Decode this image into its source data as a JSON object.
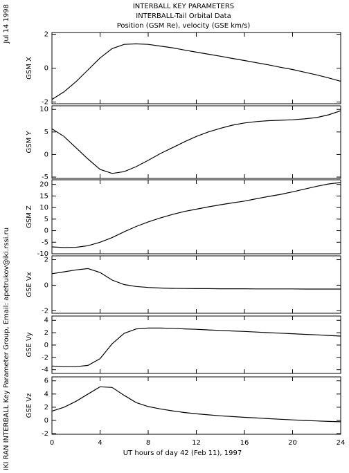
{
  "header": {
    "date": "Jul 14 1998",
    "credit": "IKI RAN INTERBALL Key Parameter Group, Email: apetrukov@iki.rssi.ru",
    "title": "INTERBALL KEY PARAMETERS",
    "subtitle": "INTERBALL-Tail Orbital Data",
    "subtitle2": "Position (GSM Re), velocity (GSE km/s)"
  },
  "chart_data": [
    {
      "type": "line",
      "ylabel": "GSM X",
      "color": "#000000",
      "x": [
        0,
        1,
        2,
        3,
        4,
        5,
        6,
        7,
        8,
        9,
        10,
        11,
        12,
        13,
        14,
        15,
        16,
        17,
        18,
        19,
        20,
        21,
        22,
        23,
        24
      ],
      "values": [
        -1.85,
        -1.4,
        -0.8,
        -0.1,
        0.6,
        1.15,
        1.4,
        1.43,
        1.4,
        1.3,
        1.2,
        1.07,
        0.94,
        0.82,
        0.7,
        0.57,
        0.45,
        0.32,
        0.19,
        0.05,
        -0.08,
        -0.24,
        -0.4,
        -0.58,
        -0.78
      ],
      "xlim": [
        0,
        24
      ],
      "xticks": [
        0,
        4,
        8,
        12,
        16,
        20,
        24
      ],
      "ylim": [
        -2.1,
        2.1
      ],
      "yticks": [
        -2,
        0,
        2
      ]
    },
    {
      "type": "line",
      "ylabel": "GSM Y",
      "color": "#000000",
      "x": [
        0,
        1,
        2,
        3,
        4,
        5,
        6,
        7,
        8,
        9,
        10,
        11,
        12,
        13,
        14,
        15,
        16,
        17,
        18,
        19,
        20,
        21,
        22,
        23,
        24
      ],
      "values": [
        5.7,
        4,
        1.5,
        -1,
        -3.3,
        -4.2,
        -3.8,
        -2.7,
        -1.3,
        0.2,
        1.5,
        2.8,
        4,
        5,
        5.8,
        6.5,
        7,
        7.3,
        7.5,
        7.6,
        7.7,
        7.9,
        8.2,
        8.8,
        9.7
      ],
      "xlim": [
        0,
        24
      ],
      "xticks": [
        0,
        4,
        8,
        12,
        16,
        20,
        24
      ],
      "ylim": [
        -5.3,
        10.8
      ],
      "yticks": [
        -5,
        0,
        5,
        10
      ]
    },
    {
      "type": "line",
      "ylabel": "GSM Z",
      "color": "#000000",
      "x": [
        0,
        1,
        2,
        3,
        4,
        5,
        6,
        7,
        8,
        9,
        10,
        11,
        12,
        13,
        14,
        15,
        16,
        17,
        18,
        19,
        20,
        21,
        22,
        23,
        24
      ],
      "values": [
        -7,
        -7.3,
        -7.2,
        -6.5,
        -5,
        -3,
        -0.5,
        1.8,
        3.8,
        5.5,
        7,
        8.3,
        9.3,
        10.3,
        11.2,
        12,
        12.8,
        13.8,
        14.8,
        15.7,
        16.8,
        18,
        19.2,
        20.2,
        20.8
      ],
      "xlim": [
        0,
        24
      ],
      "xticks": [
        0,
        4,
        8,
        12,
        16,
        20,
        24
      ],
      "ylim": [
        -10,
        22
      ],
      "yticks": [
        -10,
        -5,
        0,
        5,
        10,
        15,
        20
      ]
    },
    {
      "type": "line",
      "ylabel": "GSE Vx",
      "color": "#000000",
      "x": [
        0,
        1,
        2,
        3,
        4,
        5,
        6,
        7,
        8,
        9,
        10,
        11,
        12,
        13,
        14,
        15,
        16,
        17,
        18,
        19,
        20,
        21,
        22,
        23,
        24
      ],
      "values": [
        0.9,
        1.05,
        1.2,
        1.3,
        1.0,
        0.4,
        0.05,
        -0.1,
        -0.18,
        -0.22,
        -0.25,
        -0.26,
        -0.27,
        -0.27,
        -0.28,
        -0.28,
        -0.28,
        -0.29,
        -0.29,
        -0.29,
        -0.29,
        -0.3,
        -0.3,
        -0.3,
        -0.3
      ],
      "xlim": [
        0,
        24
      ],
      "xticks": [
        0,
        4,
        8,
        12,
        16,
        20,
        24
      ],
      "ylim": [
        -2.2,
        2.3
      ],
      "yticks": [
        -2,
        0,
        2
      ]
    },
    {
      "type": "line",
      "ylabel": "GSE Vy",
      "color": "#000000",
      "x": [
        0,
        1,
        2,
        3,
        4,
        5,
        6,
        7,
        8,
        9,
        10,
        11,
        12,
        13,
        14,
        15,
        16,
        17,
        18,
        19,
        20,
        21,
        22,
        23,
        24
      ],
      "values": [
        -3.4,
        -3.5,
        -3.5,
        -3.3,
        -2.2,
        0.2,
        1.9,
        2.6,
        2.75,
        2.75,
        2.7,
        2.62,
        2.55,
        2.45,
        2.37,
        2.28,
        2.2,
        2.1,
        2.0,
        1.92,
        1.83,
        1.73,
        1.65,
        1.55,
        1.45
      ],
      "xlim": [
        0,
        24
      ],
      "xticks": [
        0,
        4,
        8,
        12,
        16,
        20,
        24
      ],
      "ylim": [
        -4.6,
        4.7
      ],
      "yticks": [
        -4,
        -2,
        0,
        2,
        4
      ]
    },
    {
      "type": "line",
      "ylabel": "GSE Vz",
      "xlabel": "UT hours of day  42 (Feb 11), 1997",
      "color": "#000000",
      "x": [
        0,
        1,
        2,
        3,
        4,
        5,
        6,
        7,
        8,
        9,
        10,
        11,
        12,
        13,
        14,
        15,
        16,
        17,
        18,
        19,
        20,
        21,
        22,
        23,
        24
      ],
      "values": [
        1.4,
        2.0,
        2.9,
        4.0,
        5.1,
        5.0,
        3.8,
        2.7,
        2.1,
        1.75,
        1.45,
        1.2,
        1.0,
        0.85,
        0.7,
        0.58,
        0.47,
        0.37,
        0.27,
        0.17,
        0.08,
        0.0,
        -0.08,
        -0.15,
        -0.2
      ],
      "xlim": [
        0,
        24
      ],
      "xticks": [
        0,
        4,
        8,
        12,
        16,
        20,
        24
      ],
      "ylim": [
        -2.1,
        6.6
      ],
      "yticks": [
        -2,
        0,
        2,
        4,
        6
      ]
    }
  ]
}
